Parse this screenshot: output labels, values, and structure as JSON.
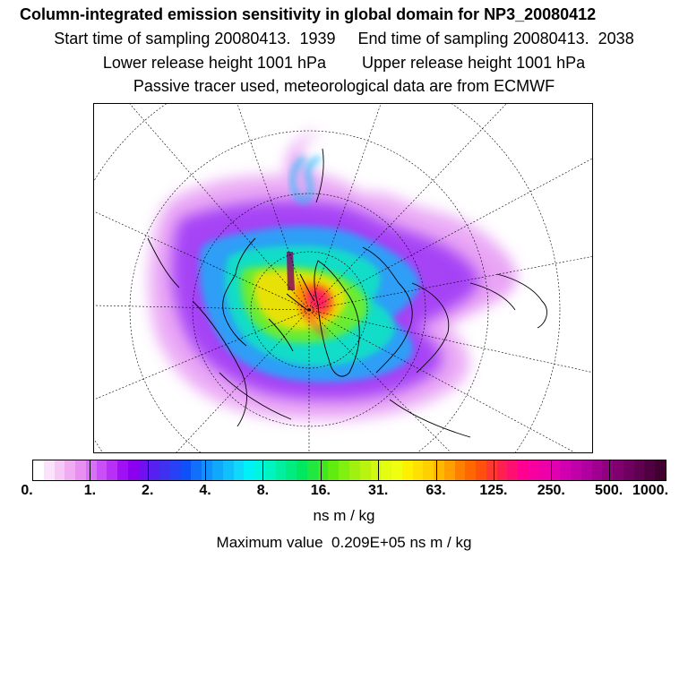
{
  "header": {
    "title": "Column-integrated emission sensitivity in global domain for NP3_20080412",
    "sampling_line": "Start time of sampling 20080413.  1939     End time of sampling 20080413.  2038",
    "release_line": "Lower release height 1001 hPa        Upper release height 1001 hPa",
    "tracer_line": "Passive tracer used, meteorological data are from ECMWF"
  },
  "map": {
    "projection": "north-polar-stereographic",
    "description_icon": "emission-sensitivity-plume"
  },
  "colorbar": {
    "tick_labels": [
      "0.",
      "1.",
      "2.",
      "4.",
      "8.",
      "16.",
      "31.",
      "63.",
      "125.",
      "250.",
      "500.",
      "1000."
    ],
    "colors": [
      "#ffffff",
      "#fbe4fb",
      "#f6c8f6",
      "#f0acf0",
      "#e890f0",
      "#d870f4",
      "#c850f6",
      "#b830f6",
      "#a010f6",
      "#8c00f0",
      "#7010f0",
      "#5820f0",
      "#4030f0",
      "#2840f6",
      "#1050f8",
      "#1070fa",
      "#1090fa",
      "#10a8fa",
      "#10c0fa",
      "#10d8fa",
      "#00f0f8",
      "#00f4e0",
      "#00f4c0",
      "#00f0a0",
      "#00ec80",
      "#00e860",
      "#20e840",
      "#40e820",
      "#60ec10",
      "#80f010",
      "#a0f010",
      "#b8f410",
      "#d0f810",
      "#e4fc10",
      "#f0ff10",
      "#fff000",
      "#ffe000",
      "#ffd000",
      "#ffb800",
      "#ffa000",
      "#ff8000",
      "#ff6800",
      "#ff5010",
      "#ff3830",
      "#ff2050",
      "#ff1070",
      "#ff0090",
      "#f800a0",
      "#ee00a8",
      "#e000b0",
      "#d000b0",
      "#c000a8",
      "#b000a0",
      "#a00090",
      "#900080",
      "#800070",
      "#700060",
      "#600050",
      "#500040",
      "#400030"
    ],
    "unit": "ns m / kg"
  },
  "footer": {
    "max_value": "Maximum value  0.209E+05 ns m / kg"
  }
}
